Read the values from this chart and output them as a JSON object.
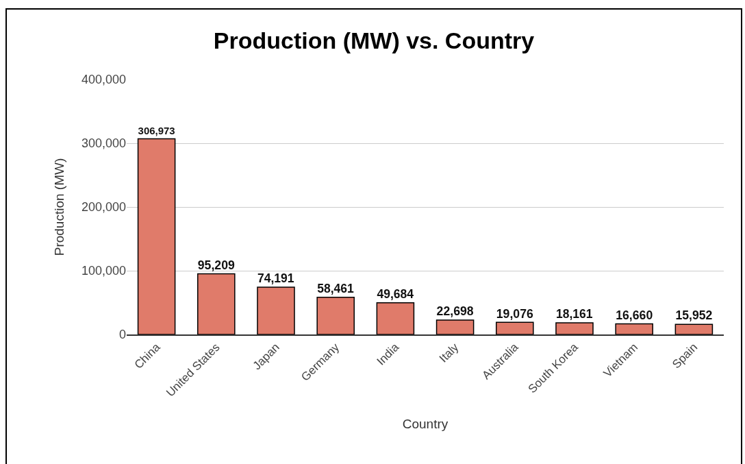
{
  "chart_data": {
    "type": "bar",
    "title": "Production (MW) vs. Country",
    "xlabel": "Country",
    "ylabel": "Production (MW)",
    "categories": [
      "China",
      "United States",
      "Japan",
      "Germany",
      "India",
      "Italy",
      "Australia",
      "South Korea",
      "Vietnam",
      "Spain"
    ],
    "values": [
      306973,
      95209,
      74191,
      58461,
      49684,
      22698,
      19076,
      18161,
      16660,
      15952
    ],
    "value_labels": [
      "306,973",
      "95,209",
      "74,191",
      "58,461",
      "49,684",
      "22,698",
      "19,076",
      "18,161",
      "16,660",
      "15,952"
    ],
    "color": "#e07b6a",
    "grid": "y",
    "ylim": [
      0,
      400000
    ],
    "yticks": [
      {
        "value": 0,
        "label": "0"
      },
      {
        "value": 100000,
        "label": "100,000"
      },
      {
        "value": 200000,
        "label": "200,000"
      },
      {
        "value": 300000,
        "label": "300,000"
      },
      {
        "value": 400000,
        "label": "400,000"
      }
    ]
  }
}
